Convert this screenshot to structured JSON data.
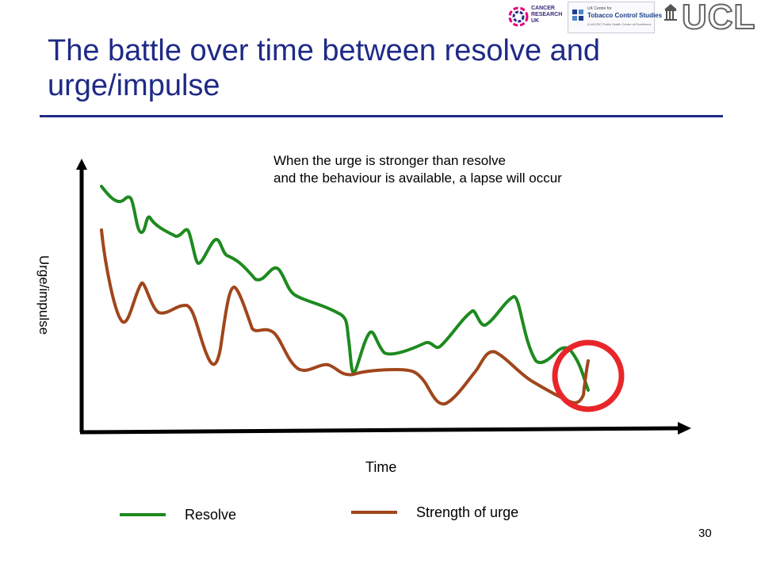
{
  "slide": {
    "title_line1": "The battle over time between resolve and",
    "title_line2": "urge/impulse",
    "annotation_line1": "When the urge is stronger than resolve",
    "annotation_line2": "and the behaviour is available, a lapse will occur",
    "page_number": "30"
  },
  "logos": {
    "cancer_research": {
      "line1": "CANCER",
      "line2": "RESEARCH",
      "line3": "UK"
    },
    "tobacco_control": {
      "line1": "UK Centre for",
      "line2": "Tobacco Control Studies",
      "line3": "A UKCRC Public Health Centre of Excellence"
    },
    "ucl": {
      "text": "UCL"
    }
  },
  "colors": {
    "title": "#1f2a86",
    "resolve": "#1e8a1e",
    "urge": "#a0461c",
    "highlight_circle": "#e8262a",
    "axis": "#000000"
  },
  "chart_data": {
    "type": "line",
    "xlabel": "Time",
    "ylabel": "Urge/impulse",
    "series": [
      {
        "name": "Resolve",
        "color": "#1e8a1e"
      },
      {
        "name": "Strength of urge",
        "color": "#a0461c"
      }
    ],
    "highlight": "red circle marking the point where urge exceeds resolve (lapse)"
  }
}
